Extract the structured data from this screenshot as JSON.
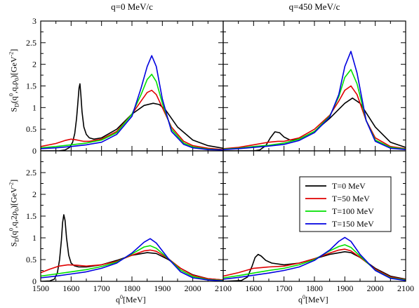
{
  "titles": {
    "left": "q=0 MeV/c",
    "right": "q=450 MeV/c"
  },
  "axes": {
    "ylabel_top_prefix": "S",
    "ylabel_top_sub": "D",
    "ylabel_top_sup": "0",
    "ylabel_top_args": "(q",
    "ylabel_top_args2": ",q,ρ",
    "ylabel_top_sub2": "0",
    "ylabel_top_unit": ")[GeV",
    "ylabel_top_unitsup": "-2",
    "ylabel_top_end": "]",
    "ylabel_bottom_args2": ",q,2ρ",
    "xlabel_prefix": "q",
    "xlabel_sup": "0",
    "xlabel_unit": "[MeV]"
  },
  "legend": {
    "entries": [
      "T=0 MeV",
      "T=50 MeV",
      "T=100 MeV",
      "T=150 MeV"
    ]
  },
  "colors": {
    "T0": "#000000",
    "T50": "#e00000",
    "T100": "#00e000",
    "T150": "#0000e0"
  },
  "chart_data": [
    {
      "type": "line",
      "panel": "top-left",
      "title": "q=0 MeV/c",
      "xlim": [
        1500,
        2100
      ],
      "ylim": [
        0,
        3
      ],
      "yticks": [
        0,
        0.5,
        1,
        1.5,
        2,
        2.5,
        3
      ],
      "xticks": [
        1500,
        1600,
        1700,
        1800,
        1900,
        2000,
        2100
      ],
      "series": [
        {
          "name": "T=0 MeV",
          "x": [
            1500,
            1560,
            1580,
            1595,
            1605,
            1612,
            1618,
            1622,
            1626,
            1629,
            1632,
            1636,
            1642,
            1650,
            1660,
            1675,
            1700,
            1750,
            1800,
            1840,
            1870,
            1890,
            1910,
            1950,
            2000,
            2050,
            2100
          ],
          "y": [
            0,
            0.0,
            0.02,
            0.08,
            0.2,
            0.4,
            0.75,
            1.1,
            1.45,
            1.55,
            1.3,
            0.9,
            0.55,
            0.38,
            0.3,
            0.27,
            0.3,
            0.5,
            0.85,
            1.05,
            1.1,
            1.07,
            0.95,
            0.55,
            0.25,
            0.12,
            0.06
          ]
        },
        {
          "name": "T=50 MeV",
          "x": [
            1500,
            1550,
            1580,
            1600,
            1620,
            1640,
            1660,
            1700,
            1750,
            1800,
            1830,
            1850,
            1865,
            1880,
            1900,
            1930,
            1970,
            2000,
            2050,
            2100
          ],
          "y": [
            0.1,
            0.17,
            0.24,
            0.27,
            0.25,
            0.22,
            0.22,
            0.27,
            0.45,
            0.85,
            1.15,
            1.35,
            1.4,
            1.3,
            1.0,
            0.55,
            0.22,
            0.12,
            0.06,
            0.03
          ]
        },
        {
          "name": "T=100 MeV",
          "x": [
            1500,
            1550,
            1600,
            1650,
            1700,
            1750,
            1800,
            1830,
            1850,
            1865,
            1880,
            1900,
            1930,
            1970,
            2000,
            2050,
            2100
          ],
          "y": [
            0.07,
            0.1,
            0.14,
            0.18,
            0.25,
            0.42,
            0.85,
            1.3,
            1.65,
            1.77,
            1.6,
            1.1,
            0.5,
            0.18,
            0.09,
            0.04,
            0.02
          ]
        },
        {
          "name": "T=150 MeV",
          "x": [
            1500,
            1550,
            1600,
            1650,
            1700,
            1750,
            1800,
            1830,
            1850,
            1865,
            1880,
            1900,
            1930,
            1970,
            2000,
            2050,
            2100
          ],
          "y": [
            0.05,
            0.07,
            0.1,
            0.14,
            0.2,
            0.38,
            0.8,
            1.45,
            1.95,
            2.2,
            1.95,
            1.2,
            0.45,
            0.15,
            0.07,
            0.03,
            0.02
          ]
        }
      ]
    },
    {
      "type": "line",
      "panel": "top-right",
      "title": "q=450 MeV/c",
      "xlim": [
        1500,
        2100
      ],
      "ylim": [
        0,
        3
      ],
      "series": [
        {
          "name": "T=0 MeV",
          "x": [
            1500,
            1600,
            1620,
            1640,
            1655,
            1670,
            1685,
            1700,
            1720,
            1750,
            1800,
            1850,
            1900,
            1925,
            1950,
            2000,
            2050,
            2100
          ],
          "y": [
            0,
            0,
            0.02,
            0.12,
            0.3,
            0.44,
            0.42,
            0.32,
            0.25,
            0.27,
            0.45,
            0.75,
            1.1,
            1.22,
            1.1,
            0.55,
            0.2,
            0.08
          ]
        },
        {
          "name": "T=50 MeV",
          "x": [
            1500,
            1550,
            1600,
            1650,
            1680,
            1700,
            1750,
            1800,
            1850,
            1880,
            1900,
            1920,
            1940,
            1970,
            2000,
            2050,
            2100
          ],
          "y": [
            0.05,
            0.08,
            0.14,
            0.2,
            0.22,
            0.22,
            0.3,
            0.5,
            0.82,
            1.15,
            1.4,
            1.5,
            1.3,
            0.7,
            0.3,
            0.1,
            0.05
          ]
        },
        {
          "name": "T=100 MeV",
          "x": [
            1500,
            1550,
            1600,
            1650,
            1700,
            1750,
            1800,
            1850,
            1880,
            1900,
            1920,
            1940,
            1970,
            2000,
            2050,
            2100
          ],
          "y": [
            0.04,
            0.06,
            0.1,
            0.13,
            0.18,
            0.27,
            0.45,
            0.8,
            1.25,
            1.7,
            1.88,
            1.55,
            0.7,
            0.25,
            0.08,
            0.04
          ]
        },
        {
          "name": "T=150 MeV",
          "x": [
            1500,
            1550,
            1600,
            1650,
            1700,
            1750,
            1800,
            1850,
            1880,
            1900,
            1920,
            1940,
            1970,
            2000,
            2050,
            2100
          ],
          "y": [
            0.03,
            0.05,
            0.08,
            0.11,
            0.15,
            0.24,
            0.42,
            0.78,
            1.3,
            1.95,
            2.3,
            1.8,
            0.7,
            0.22,
            0.06,
            0.03
          ]
        }
      ]
    },
    {
      "type": "line",
      "panel": "bottom-left",
      "xlim": [
        1500,
        2100
      ],
      "ylim": [
        0,
        3
      ],
      "yticks": [
        0,
        0.5,
        1,
        1.5,
        2,
        2.5
      ],
      "series": [
        {
          "name": "T=0 MeV",
          "x": [
            1500,
            1530,
            1545,
            1555,
            1562,
            1568,
            1572,
            1576,
            1580,
            1585,
            1592,
            1600,
            1610,
            1625,
            1650,
            1700,
            1750,
            1800,
            1850,
            1880,
            1920,
            1960,
            2000,
            2050,
            2100
          ],
          "y": [
            0,
            0.01,
            0.05,
            0.2,
            0.5,
            0.95,
            1.35,
            1.53,
            1.4,
            1.0,
            0.6,
            0.42,
            0.36,
            0.33,
            0.33,
            0.38,
            0.48,
            0.6,
            0.66,
            0.64,
            0.5,
            0.3,
            0.15,
            0.06,
            0.03
          ]
        },
        {
          "name": "T=50 MeV",
          "x": [
            1500,
            1530,
            1560,
            1590,
            1620,
            1650,
            1700,
            1750,
            1800,
            1840,
            1860,
            1880,
            1920,
            1960,
            2000,
            2050,
            2100
          ],
          "y": [
            0.2,
            0.28,
            0.35,
            0.38,
            0.37,
            0.35,
            0.38,
            0.46,
            0.6,
            0.7,
            0.72,
            0.69,
            0.52,
            0.3,
            0.14,
            0.06,
            0.03
          ]
        },
        {
          "name": "T=100 MeV",
          "x": [
            1500,
            1550,
            1600,
            1650,
            1700,
            1750,
            1800,
            1840,
            1860,
            1880,
            1920,
            1960,
            2000,
            2050,
            2100
          ],
          "y": [
            0.12,
            0.17,
            0.22,
            0.27,
            0.34,
            0.44,
            0.63,
            0.79,
            0.82,
            0.76,
            0.52,
            0.26,
            0.11,
            0.04,
            0.02
          ]
        },
        {
          "name": "T=150 MeV",
          "x": [
            1500,
            1550,
            1600,
            1650,
            1700,
            1750,
            1800,
            1840,
            1860,
            1880,
            1920,
            1960,
            2000,
            2050,
            2100
          ],
          "y": [
            0.08,
            0.12,
            0.17,
            0.22,
            0.3,
            0.42,
            0.65,
            0.9,
            0.98,
            0.88,
            0.52,
            0.22,
            0.08,
            0.03,
            0.01
          ]
        }
      ]
    },
    {
      "type": "line",
      "panel": "bottom-right",
      "xlim": [
        1500,
        2100
      ],
      "ylim": [
        0,
        3
      ],
      "series": [
        {
          "name": "T=0 MeV",
          "x": [
            1500,
            1560,
            1580,
            1595,
            1605,
            1615,
            1625,
            1640,
            1660,
            1700,
            1750,
            1800,
            1850,
            1900,
            1920,
            1950,
            2000,
            2050,
            2100
          ],
          "y": [
            0,
            0.02,
            0.1,
            0.35,
            0.55,
            0.62,
            0.58,
            0.48,
            0.42,
            0.38,
            0.42,
            0.52,
            0.62,
            0.68,
            0.66,
            0.55,
            0.3,
            0.12,
            0.05
          ]
        },
        {
          "name": "T=50 MeV",
          "x": [
            1500,
            1550,
            1600,
            1650,
            1700,
            1750,
            1800,
            1850,
            1880,
            1900,
            1920,
            1950,
            2000,
            2050,
            2100
          ],
          "y": [
            0.12,
            0.2,
            0.3,
            0.33,
            0.35,
            0.42,
            0.52,
            0.65,
            0.72,
            0.74,
            0.7,
            0.55,
            0.28,
            0.1,
            0.04
          ]
        },
        {
          "name": "T=100 MeV",
          "x": [
            1500,
            1550,
            1600,
            1650,
            1700,
            1750,
            1800,
            1850,
            1880,
            1900,
            1920,
            1950,
            2000,
            2050,
            2100
          ],
          "y": [
            0.08,
            0.13,
            0.19,
            0.25,
            0.3,
            0.38,
            0.5,
            0.7,
            0.8,
            0.84,
            0.78,
            0.58,
            0.26,
            0.08,
            0.03
          ]
        },
        {
          "name": "T=150 MeV",
          "x": [
            1500,
            1550,
            1600,
            1650,
            1700,
            1750,
            1800,
            1850,
            1880,
            1900,
            1920,
            1950,
            2000,
            2050,
            2100
          ],
          "y": [
            0.05,
            0.09,
            0.14,
            0.19,
            0.25,
            0.33,
            0.48,
            0.72,
            0.92,
            1.01,
            0.92,
            0.62,
            0.25,
            0.07,
            0.02
          ]
        }
      ]
    }
  ]
}
